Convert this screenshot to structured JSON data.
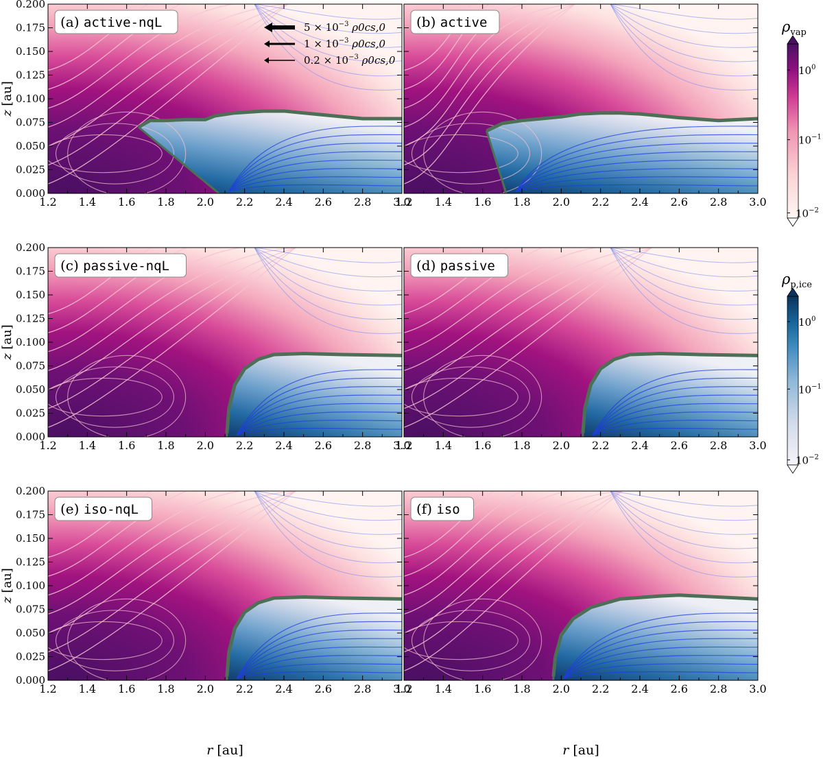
{
  "chart_data": {
    "type": "heatmap",
    "description_shared_axes": true,
    "x": {
      "label_italic": "r",
      "label_unit": "[au]",
      "range": [
        1.2,
        3.0
      ],
      "ticks": [
        1.2,
        1.4,
        1.6,
        1.8,
        2.0,
        2.2,
        2.4,
        2.6,
        2.8,
        3.0
      ],
      "tick_labels": [
        "1.2",
        "1.4",
        "1.6",
        "1.8",
        "2.0",
        "2.2",
        "2.4",
        "2.6",
        "2.8",
        "3.0"
      ]
    },
    "y": {
      "label_italic": "z",
      "label_unit": "[au]",
      "range": [
        0.0,
        0.2
      ],
      "ticks": [
        0.0,
        0.025,
        0.05,
        0.075,
        0.1,
        0.125,
        0.15,
        0.175,
        0.2
      ],
      "tick_labels": [
        "0.000",
        "0.025",
        "0.050",
        "0.075",
        "0.100",
        "0.125",
        "0.150",
        "0.175",
        "0.200"
      ]
    },
    "panels": [
      {
        "id": "a",
        "prefix": "(a) ",
        "name": "active-nqL",
        "front": [
          [
            1.66,
            0.07
          ],
          [
            1.72,
            0.077
          ],
          [
            1.8,
            0.077
          ],
          [
            1.9,
            0.078
          ],
          [
            2.0,
            0.078
          ],
          [
            2.05,
            0.082
          ],
          [
            2.15,
            0.085
          ],
          [
            2.3,
            0.087
          ],
          [
            2.4,
            0.087
          ],
          [
            2.6,
            0.083
          ],
          [
            2.8,
            0.079
          ],
          [
            3.0,
            0.079
          ]
        ],
        "front_bottom_r": 2.07
      },
      {
        "id": "b",
        "prefix": "(b) ",
        "name": "active",
        "front": [
          [
            1.62,
            0.066
          ],
          [
            1.7,
            0.074
          ],
          [
            1.8,
            0.077
          ],
          [
            1.9,
            0.079
          ],
          [
            2.0,
            0.081
          ],
          [
            2.1,
            0.084
          ],
          [
            2.2,
            0.085
          ],
          [
            2.3,
            0.085
          ],
          [
            2.4,
            0.084
          ],
          [
            2.6,
            0.08
          ],
          [
            2.8,
            0.077
          ],
          [
            3.0,
            0.079
          ]
        ],
        "front_bottom_r": 1.72
      },
      {
        "id": "c",
        "prefix": "(c) ",
        "name": "passive-nqL",
        "front": [
          [
            2.11,
            0.004
          ],
          [
            2.12,
            0.03
          ],
          [
            2.15,
            0.055
          ],
          [
            2.2,
            0.072
          ],
          [
            2.27,
            0.082
          ],
          [
            2.35,
            0.087
          ],
          [
            2.5,
            0.088
          ],
          [
            2.7,
            0.087
          ],
          [
            3.0,
            0.086
          ]
        ],
        "front_bottom_r": 2.11
      },
      {
        "id": "d",
        "prefix": "(d) ",
        "name": "passive",
        "front": [
          [
            2.11,
            0.004
          ],
          [
            2.12,
            0.03
          ],
          [
            2.15,
            0.055
          ],
          [
            2.2,
            0.072
          ],
          [
            2.27,
            0.082
          ],
          [
            2.35,
            0.087
          ],
          [
            2.5,
            0.088
          ],
          [
            2.7,
            0.087
          ],
          [
            3.0,
            0.086
          ]
        ],
        "front_bottom_r": 2.11
      },
      {
        "id": "e",
        "prefix": "(e) ",
        "name": "iso-nqL",
        "front": [
          [
            2.11,
            0.004
          ],
          [
            2.12,
            0.03
          ],
          [
            2.15,
            0.055
          ],
          [
            2.2,
            0.072
          ],
          [
            2.27,
            0.082
          ],
          [
            2.35,
            0.087
          ],
          [
            2.5,
            0.088
          ],
          [
            2.7,
            0.087
          ],
          [
            3.0,
            0.086
          ]
        ],
        "front_bottom_r": 2.11
      },
      {
        "id": "f",
        "prefix": "(f) ",
        "name": "iso",
        "front": [
          [
            1.96,
            0.004
          ],
          [
            1.97,
            0.025
          ],
          [
            2.0,
            0.048
          ],
          [
            2.06,
            0.065
          ],
          [
            2.15,
            0.077
          ],
          [
            2.3,
            0.086
          ],
          [
            2.5,
            0.089
          ],
          [
            2.6,
            0.09
          ],
          [
            2.8,
            0.088
          ],
          [
            3.0,
            0.086
          ]
        ],
        "front_bottom_r": 1.96
      }
    ],
    "colorbars": [
      {
        "symbol": "ρ",
        "subscript": "vap",
        "scale": "log",
        "range": [
          0.01,
          1.0
        ],
        "tick_labels": [
          "10",
          "10",
          "10"
        ],
        "tick_exponents": [
          "0",
          "−1",
          "−2"
        ],
        "colormap": "pink-purple"
      },
      {
        "symbol": "ρ",
        "subscript": "p,ice",
        "scale": "log",
        "range": [
          0.01,
          1.0
        ],
        "tick_labels": [
          "10",
          "10",
          "10"
        ],
        "tick_exponents": [
          "0",
          "−1",
          "−2"
        ],
        "colormap": "white-blue"
      }
    ],
    "arrow_legend": [
      {
        "coef": "5",
        "exponent": "−3",
        "unit": "ρ0cs,0"
      },
      {
        "coef": "1",
        "exponent": "−3",
        "unit": "ρ0cs,0"
      },
      {
        "coef": "0.2",
        "exponent": "−3",
        "unit": "ρ0cs,0"
      }
    ],
    "grid": false
  }
}
